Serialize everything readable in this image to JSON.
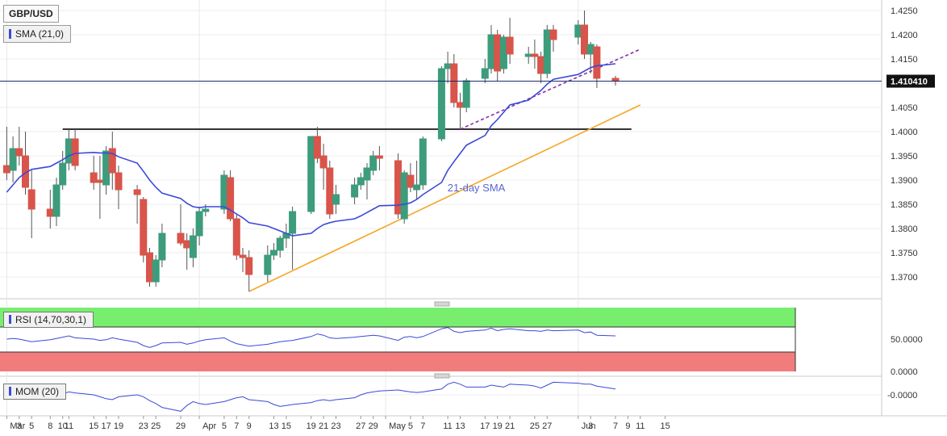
{
  "symbol": "GBP/USD",
  "indicator_label": "SMA (21,0)",
  "rsi_label": "RSI (14,70,30,1)",
  "mom_label": "MOM (20)",
  "last_price": "1.410410",
  "sma_annotation": "21-day SMA",
  "colors": {
    "up": "#3c9c7c",
    "down": "#d9544a",
    "sma": "#3a4ad8",
    "trend": "#f5a623",
    "resistance": "#8a2ea8",
    "rsi_upper": "#77ee6e",
    "rsi_lower": "#f07c7c"
  },
  "chart_data": [
    {
      "type": "candlestick",
      "title": "GBP/USD",
      "ylim": [
        1.366,
        1.426
      ],
      "y_ticks": [
        "1.4250",
        "1.4200",
        "1.4150",
        "1.4100",
        "1.4050",
        "1.4000",
        "1.3950",
        "1.3900",
        "1.3850",
        "1.3800",
        "1.3750",
        "1.3700"
      ],
      "x_ticks": [
        "Mar",
        "3",
        "5",
        "8",
        "10",
        "11",
        "15",
        "17",
        "19",
        "23",
        "25",
        "29",
        "Apr",
        "5",
        "7",
        "9",
        "13",
        "15",
        "19",
        "21",
        "23",
        "27",
        "29",
        "May",
        "5",
        "7",
        "11",
        "13",
        "17",
        "19",
        "21",
        "25",
        "27",
        "Jun",
        "3",
        "7",
        "9",
        "11",
        "15"
      ],
      "candles": [
        {
          "date": "Mar 1",
          "o": 1.393,
          "h": 1.401,
          "l": 1.39,
          "c": 1.3915
        },
        {
          "date": "Mar 2",
          "o": 1.392,
          "h": 1.399,
          "l": 1.3895,
          "c": 1.3965
        },
        {
          "date": "Mar 3",
          "o": 1.3965,
          "h": 1.401,
          "l": 1.393,
          "c": 1.395
        },
        {
          "date": "Mar 4",
          "o": 1.395,
          "h": 1.4,
          "l": 1.387,
          "c": 1.3885
        },
        {
          "date": "Mar 5",
          "o": 1.388,
          "h": 1.392,
          "l": 1.378,
          "c": 1.384
        },
        {
          "date": "Mar 8",
          "o": 1.384,
          "h": 1.388,
          "l": 1.38,
          "c": 1.3825
        },
        {
          "date": "Mar 9",
          "o": 1.3825,
          "h": 1.3905,
          "l": 1.3805,
          "c": 1.389
        },
        {
          "date": "Mar 10",
          "o": 1.389,
          "h": 1.396,
          "l": 1.388,
          "c": 1.3935
        },
        {
          "date": "Mar 11",
          "o": 1.3935,
          "h": 1.4005,
          "l": 1.392,
          "c": 1.3985
        },
        {
          "date": "Mar 12",
          "o": 1.3985,
          "h": 1.4005,
          "l": 1.392,
          "c": 1.393
        },
        {
          "date": "Mar 15",
          "o": 1.3915,
          "h": 1.395,
          "l": 1.388,
          "c": 1.3895
        },
        {
          "date": "Mar 16",
          "o": 1.39,
          "h": 1.395,
          "l": 1.382,
          "c": 1.3895
        },
        {
          "date": "Mar 17",
          "o": 1.389,
          "h": 1.397,
          "l": 1.387,
          "c": 1.396
        },
        {
          "date": "Mar 18",
          "o": 1.3965,
          "h": 1.4,
          "l": 1.388,
          "c": 1.3915
        },
        {
          "date": "Mar 19",
          "o": 1.3915,
          "h": 1.393,
          "l": 1.384,
          "c": 1.388
        },
        {
          "date": "Mar 22",
          "o": 1.388,
          "h": 1.389,
          "l": 1.381,
          "c": 1.387
        },
        {
          "date": "Mar 23",
          "o": 1.386,
          "h": 1.3865,
          "l": 1.373,
          "c": 1.3745
        },
        {
          "date": "Mar 24",
          "o": 1.375,
          "h": 1.376,
          "l": 1.368,
          "c": 1.369
        },
        {
          "date": "Mar 25",
          "o": 1.369,
          "h": 1.3745,
          "l": 1.368,
          "c": 1.3735
        },
        {
          "date": "Mar 26",
          "o": 1.3735,
          "h": 1.381,
          "l": 1.372,
          "c": 1.379
        },
        {
          "date": "Mar 29",
          "o": 1.379,
          "h": 1.385,
          "l": 1.3765,
          "c": 1.377
        },
        {
          "date": "Mar 30",
          "o": 1.3775,
          "h": 1.379,
          "l": 1.3715,
          "c": 1.376
        },
        {
          "date": "Mar 31",
          "o": 1.374,
          "h": 1.38,
          "l": 1.372,
          "c": 1.3785
        },
        {
          "date": "Apr 1",
          "o": 1.3785,
          "h": 1.3845,
          "l": 1.3765,
          "c": 1.3835
        },
        {
          "date": "Apr 2",
          "o": 1.3835,
          "h": 1.385,
          "l": 1.3825,
          "c": 1.384
        },
        {
          "date": "Apr 5",
          "o": 1.384,
          "h": 1.392,
          "l": 1.383,
          "c": 1.391
        },
        {
          "date": "Apr 6",
          "o": 1.3905,
          "h": 1.392,
          "l": 1.3815,
          "c": 1.382
        },
        {
          "date": "Apr 7",
          "o": 1.382,
          "h": 1.383,
          "l": 1.3735,
          "c": 1.3745
        },
        {
          "date": "Apr 8",
          "o": 1.3745,
          "h": 1.376,
          "l": 1.371,
          "c": 1.374
        },
        {
          "date": "Apr 9",
          "o": 1.374,
          "h": 1.3755,
          "l": 1.367,
          "c": 1.3705
        },
        {
          "date": "Apr 12",
          "o": 1.3705,
          "h": 1.3765,
          "l": 1.369,
          "c": 1.3745
        },
        {
          "date": "Apr 13",
          "o": 1.3745,
          "h": 1.377,
          "l": 1.3735,
          "c": 1.3755
        },
        {
          "date": "Apr 14",
          "o": 1.3755,
          "h": 1.3785,
          "l": 1.374,
          "c": 1.378
        },
        {
          "date": "Apr 15",
          "o": 1.378,
          "h": 1.381,
          "l": 1.376,
          "c": 1.379
        },
        {
          "date": "Apr 16",
          "o": 1.379,
          "h": 1.3845,
          "l": 1.3715,
          "c": 1.3835
        },
        {
          "date": "Apr 19",
          "o": 1.3835,
          "h": 1.399,
          "l": 1.383,
          "c": 1.399
        },
        {
          "date": "Apr 20",
          "o": 1.399,
          "h": 1.401,
          "l": 1.3935,
          "c": 1.3945
        },
        {
          "date": "Apr 21",
          "o": 1.395,
          "h": 1.3975,
          "l": 1.388,
          "c": 1.3925
        },
        {
          "date": "Apr 22",
          "o": 1.3925,
          "h": 1.394,
          "l": 1.382,
          "c": 1.383
        },
        {
          "date": "Apr 23",
          "o": 1.385,
          "h": 1.389,
          "l": 1.383,
          "c": 1.387
        },
        {
          "date": "Apr 26",
          "o": 1.3865,
          "h": 1.3905,
          "l": 1.385,
          "c": 1.389
        },
        {
          "date": "Apr 27",
          "o": 1.389,
          "h": 1.3915,
          "l": 1.388,
          "c": 1.3905
        },
        {
          "date": "Apr 28",
          "o": 1.39,
          "h": 1.3935,
          "l": 1.386,
          "c": 1.3925
        },
        {
          "date": "Apr 29",
          "o": 1.392,
          "h": 1.396,
          "l": 1.391,
          "c": 1.395
        },
        {
          "date": "Apr 30",
          "o": 1.395,
          "h": 1.397,
          "l": 1.392,
          "c": 1.3945
        },
        {
          "date": "May 3",
          "o": 1.394,
          "h": 1.3955,
          "l": 1.382,
          "c": 1.383
        },
        {
          "date": "May 4",
          "o": 1.382,
          "h": 1.392,
          "l": 1.381,
          "c": 1.3915
        },
        {
          "date": "May 5",
          "o": 1.391,
          "h": 1.3935,
          "l": 1.3875,
          "c": 1.3885
        },
        {
          "date": "May 6",
          "o": 1.388,
          "h": 1.394,
          "l": 1.386,
          "c": 1.389
        },
        {
          "date": "May 7",
          "o": 1.389,
          "h": 1.399,
          "l": 1.388,
          "c": 1.3985
        },
        {
          "date": "May 10",
          "o": 1.3985,
          "h": 1.4135,
          "l": 1.398,
          "c": 1.413
        },
        {
          "date": "May 11",
          "o": 1.413,
          "h": 1.4165,
          "l": 1.41,
          "c": 1.414
        },
        {
          "date": "May 12",
          "o": 1.414,
          "h": 1.416,
          "l": 1.405,
          "c": 1.406
        },
        {
          "date": "May 13",
          "o": 1.406,
          "h": 1.408,
          "l": 1.4005,
          "c": 1.405
        },
        {
          "date": "May 14",
          "o": 1.405,
          "h": 1.411,
          "l": 1.404,
          "c": 1.4105
        },
        {
          "date": "May 17",
          "o": 1.411,
          "h": 1.415,
          "l": 1.41,
          "c": 1.413
        },
        {
          "date": "May 18",
          "o": 1.413,
          "h": 1.422,
          "l": 1.412,
          "c": 1.42
        },
        {
          "date": "May 19",
          "o": 1.42,
          "h": 1.421,
          "l": 1.4105,
          "c": 1.4125
        },
        {
          "date": "May 20",
          "o": 1.413,
          "h": 1.42,
          "l": 1.412,
          "c": 1.4195
        },
        {
          "date": "May 21",
          "o": 1.4195,
          "h": 1.4235,
          "l": 1.414,
          "c": 1.416
        },
        {
          "date": "May 24",
          "o": 1.4155,
          "h": 1.4175,
          "l": 1.414,
          "c": 1.416
        },
        {
          "date": "May 25",
          "o": 1.416,
          "h": 1.419,
          "l": 1.413,
          "c": 1.4155
        },
        {
          "date": "May 26",
          "o": 1.4155,
          "h": 1.4165,
          "l": 1.41,
          "c": 1.412
        },
        {
          "date": "May 27",
          "o": 1.412,
          "h": 1.422,
          "l": 1.411,
          "c": 1.421
        },
        {
          "date": "May 28",
          "o": 1.421,
          "h": 1.422,
          "l": 1.4165,
          "c": 1.419
        },
        {
          "date": "Jun 1",
          "o": 1.4195,
          "h": 1.423,
          "l": 1.418,
          "c": 1.422
        },
        {
          "date": "Jun 2",
          "o": 1.422,
          "h": 1.425,
          "l": 1.415,
          "c": 1.416
        },
        {
          "date": "Jun 3",
          "o": 1.416,
          "h": 1.4185,
          "l": 1.412,
          "c": 1.418
        },
        {
          "date": "Jun 4",
          "o": 1.4175,
          "h": 1.418,
          "l": 1.409,
          "c": 1.411
        },
        {
          "date": "Jun 7",
          "o": 1.411,
          "h": 1.4115,
          "l": 1.4095,
          "c": 1.4104
        }
      ],
      "sma21": [
        1.3875,
        1.389,
        1.3905,
        1.3915,
        1.3922,
        1.3928,
        1.3935,
        1.3942,
        1.395,
        1.3955,
        1.3957,
        1.3956,
        1.3956,
        1.3955,
        1.3948,
        1.3935,
        1.3918,
        1.39,
        1.3885,
        1.3873,
        1.3862,
        1.3852,
        1.3845,
        1.3843,
        1.3845,
        1.3845,
        1.3838,
        1.383,
        1.3822,
        1.3812,
        1.3805,
        1.38,
        1.3795,
        1.379,
        1.3785,
        1.379,
        1.38,
        1.3808,
        1.3812,
        1.3815,
        1.382,
        1.3826,
        1.3833,
        1.384,
        1.3847,
        1.3848,
        1.385,
        1.3853,
        1.386,
        1.387,
        1.3895,
        1.392,
        1.3938,
        1.3955,
        1.3972,
        1.3992,
        1.4012,
        1.4025,
        1.404,
        1.4055,
        1.4065,
        1.4075,
        1.4085,
        1.4098,
        1.4108,
        1.4118,
        1.4125,
        1.4132,
        1.4136,
        1.414
      ],
      "horizontal_support": 1.4005,
      "rising_trendline": [
        {
          "date": "Apr 9",
          "value": 1.367
        },
        {
          "date": "Jun 11",
          "value": 1.4055
        }
      ],
      "resistance_line": [
        {
          "date": "May 13",
          "value": 1.4005
        },
        {
          "date": "Jun 11",
          "value": 1.417
        }
      ],
      "annotations": [
        "21-day SMA"
      ]
    },
    {
      "type": "line",
      "title": "RSI (14,70,30,1)",
      "ylim": [
        0,
        100
      ],
      "y_ticks": [
        "50.0000",
        "0.0000"
      ],
      "overbought": 70,
      "oversold": 30,
      "values": [
        50,
        51,
        50,
        48,
        46,
        49,
        51,
        53,
        55,
        52,
        50,
        48,
        49,
        52,
        50,
        45,
        40,
        37,
        40,
        44,
        45,
        42,
        44,
        47,
        49,
        52,
        47,
        43,
        41,
        39,
        42,
        44,
        46,
        47,
        48,
        54,
        58,
        56,
        52,
        51,
        53,
        54,
        55,
        56,
        55,
        48,
        53,
        54,
        52,
        54,
        66,
        68,
        62,
        60,
        62,
        64,
        67,
        63,
        65,
        66,
        63,
        63,
        62,
        64,
        63,
        64,
        60,
        61,
        56,
        55
      ]
    },
    {
      "type": "line",
      "title": "MOM (20)",
      "y_ticks": [
        "-0.0000"
      ],
      "values": [
        0.0,
        -0.001,
        -0.0015,
        -0.002,
        -0.0015,
        -0.001,
        -0.0005,
        0.0005,
        0.0015,
        0.001,
        0.0,
        -0.001,
        -0.002,
        -0.0025,
        -0.001,
        0.0,
        -0.001,
        -0.003,
        -0.0045,
        -0.0065,
        -0.0085,
        -0.0055,
        -0.0035,
        -0.0045,
        -0.005,
        -0.0035,
        -0.0025,
        -0.0015,
        -0.001,
        -0.0025,
        -0.0035,
        -0.005,
        -0.006,
        -0.0055,
        -0.005,
        -0.004,
        -0.003,
        -0.0025,
        -0.003,
        -0.0025,
        -0.0015,
        0.0,
        0.001,
        0.0015,
        0.002,
        0.0025,
        0.002,
        0.0015,
        0.0012,
        0.0015,
        0.003,
        0.0055,
        0.0065,
        0.0055,
        0.004,
        0.004,
        0.005,
        0.0045,
        0.004,
        0.0055,
        0.005,
        0.0045,
        0.0035,
        0.005,
        0.0065,
        0.006,
        0.0055,
        0.0055,
        0.0045,
        0.003
      ]
    }
  ]
}
